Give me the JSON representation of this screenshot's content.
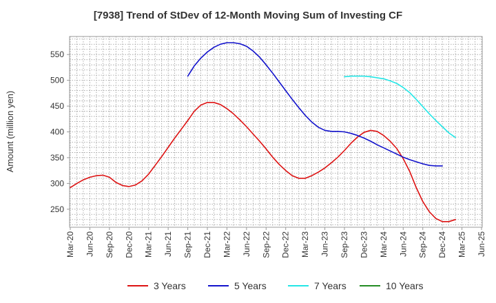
{
  "chart_data": {
    "type": "line",
    "title": "[7938]  Trend of StDev of 12-Month Moving Sum of Investing CF",
    "xlabel": "",
    "ylabel": "Amount (million yen)",
    "ylim": [
      215,
      585
    ],
    "yticks": [
      250,
      300,
      350,
      400,
      450,
      500,
      550
    ],
    "x_tick_labels": [
      "Mar-20",
      "Jun-20",
      "Sep-20",
      "Dec-20",
      "Mar-21",
      "Jun-21",
      "Sep-21",
      "Dec-21",
      "Mar-22",
      "Jun-22",
      "Sep-22",
      "Dec-22",
      "Mar-23",
      "Jun-23",
      "Sep-23",
      "Dec-23",
      "Mar-24",
      "Jun-24",
      "Sep-24",
      "Dec-24",
      "Mar-25",
      "Jun-25"
    ],
    "grid": true,
    "legend_position": "bottom",
    "series": [
      {
        "name": "3 Years",
        "color": "#dd1111",
        "start_month_index": 0,
        "values": [
          292,
          300,
          307,
          312,
          315,
          316,
          312,
          302,
          296,
          294,
          297,
          305,
          318,
          335,
          352,
          370,
          388,
          405,
          422,
          440,
          452,
          457,
          457,
          453,
          445,
          435,
          423,
          410,
          396,
          382,
          367,
          351,
          337,
          325,
          315,
          310,
          310,
          315,
          322,
          330,
          340,
          351,
          364,
          378,
          390,
          399,
          403,
          401,
          393,
          382,
          368,
          348,
          323,
          292,
          265,
          245,
          232,
          226,
          226,
          230
        ],
        "color_key": "red"
      },
      {
        "name": "5 Years",
        "color": "#1111cc",
        "start_month_index": 18,
        "values": [
          508,
          528,
          543,
          555,
          564,
          570,
          573,
          573,
          571,
          566,
          557,
          545,
          530,
          514,
          497,
          480,
          463,
          447,
          432,
          419,
          409,
          403,
          401,
          401,
          400,
          397,
          393,
          388,
          382,
          375,
          369,
          363,
          357,
          351,
          346,
          342,
          338,
          335,
          334,
          334
        ],
        "color_key": "blue"
      },
      {
        "name": "7 Years",
        "color": "#22e6e6",
        "start_month_index": 42,
        "values": [
          507,
          508,
          508,
          508,
          507,
          505,
          503,
          499,
          494,
          486,
          476,
          463,
          449,
          435,
          422,
          410,
          398,
          389
        ],
        "color_key": "cyan"
      },
      {
        "name": "10 Years",
        "color": "#228b22",
        "start_month_index": 0,
        "values": [],
        "color_key": "green"
      }
    ]
  }
}
